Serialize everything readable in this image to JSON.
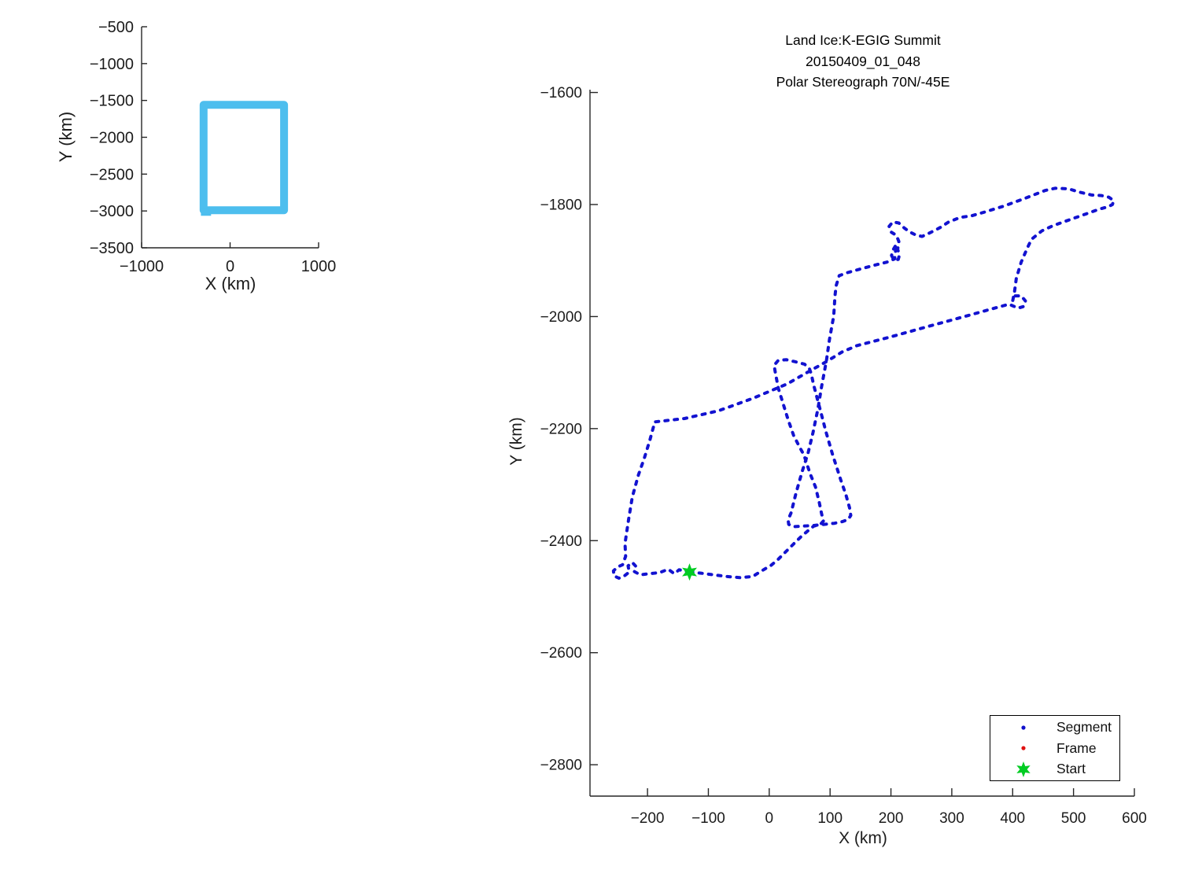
{
  "figure": {
    "background": "#ffffff",
    "text_color": "#1c1c1c"
  },
  "chart_data": [
    {
      "id": "overview",
      "type": "line",
      "title": "",
      "xlabel": "X (km)",
      "ylabel": "Y (km)",
      "xlim": [
        -1000,
        1000
      ],
      "ylim": [
        -3500,
        -500
      ],
      "xticks": [
        -1000,
        0,
        1000
      ],
      "yticks": [
        -500,
        -1000,
        -1500,
        -2000,
        -2500,
        -3000,
        -3500
      ],
      "grid": false,
      "legend_position": "none",
      "series": [
        {
          "name": "coverage-outline",
          "color": "#4dbeee",
          "linewidth": 10,
          "closed": true,
          "points": [
            [
              -300,
              -1560
            ],
            [
              610,
              -1560
            ],
            [
              610,
              -2990
            ],
            [
              -300,
              -2990
            ]
          ]
        },
        {
          "name": "coverage-outline-tail",
          "color": "#4dbeee",
          "linewidth": 10,
          "closed": false,
          "points": [
            [
              -330,
              -3012
            ],
            [
              -215,
              -3012
            ]
          ]
        }
      ]
    },
    {
      "id": "flight",
      "type": "line",
      "title_lines": [
        "Land Ice:K-EGIG Summit",
        "20150409_01_048",
        "Polar Stereograph 70N/-45E"
      ],
      "xlabel": "X (km)",
      "ylabel": "Y (km)",
      "xlim": [
        -294.5,
        600
      ],
      "ylim": [
        -2856,
        -1595
      ],
      "xticks": [
        -200,
        -100,
        0,
        100,
        200,
        300,
        400,
        500,
        600
      ],
      "yticks": [
        -1600,
        -1800,
        -2000,
        -2200,
        -2400,
        -2600,
        -2800
      ],
      "grid": false,
      "legend_position": "lower-right",
      "legend": [
        {
          "label": "Segment",
          "marker": "dot",
          "color": "#1111cc"
        },
        {
          "label": "Frame",
          "marker": "dot",
          "color": "#e01111"
        },
        {
          "label": "Start",
          "marker": "hexagram",
          "color": "#00cc22"
        }
      ],
      "start_marker": {
        "x": -131,
        "y": -2456,
        "color": "#00cc22"
      },
      "series": [
        {
          "name": "segment-track",
          "color": "#1212d0",
          "linewidth": 4,
          "dash": "4 8",
          "cap": "round",
          "closed": false,
          "points": [
            [
              -131,
              -2456
            ],
            [
              -148,
              -2452
            ],
            [
              -156,
              -2459
            ],
            [
              -166,
              -2451
            ],
            [
              -180,
              -2457
            ],
            [
              -198,
              -2459
            ],
            [
              -212,
              -2461
            ],
            [
              -222,
              -2455
            ],
            [
              -219,
              -2446
            ],
            [
              -225,
              -2439
            ],
            [
              -232,
              -2445
            ],
            [
              -230,
              -2456
            ],
            [
              -238,
              -2463
            ],
            [
              -247,
              -2467
            ],
            [
              -255,
              -2463
            ],
            [
              -256,
              -2454
            ],
            [
              -249,
              -2447
            ],
            [
              -241,
              -2443
            ],
            [
              -236,
              -2428
            ],
            [
              -237,
              -2405
            ],
            [
              -231,
              -2362
            ],
            [
              -225,
              -2322
            ],
            [
              -215,
              -2283
            ],
            [
              -205,
              -2252
            ],
            [
              -196,
              -2220
            ],
            [
              -188,
              -2188
            ],
            [
              -139,
              -2182
            ],
            [
              -83,
              -2168
            ],
            [
              -27,
              -2146
            ],
            [
              30,
              -2120
            ],
            [
              62,
              -2100
            ],
            [
              93,
              -2081
            ],
            [
              120,
              -2063
            ],
            [
              144,
              -2052
            ],
            [
              200,
              -2036
            ],
            [
              260,
              -2018
            ],
            [
              324,
              -1999
            ],
            [
              367,
              -1986
            ],
            [
              394,
              -1978
            ],
            [
              409,
              -1985
            ],
            [
              418,
              -1982
            ],
            [
              421,
              -1972
            ],
            [
              414,
              -1963
            ],
            [
              404,
              -1963
            ],
            [
              400,
              -1972
            ],
            [
              403,
              -1956
            ],
            [
              406,
              -1932
            ],
            [
              414,
              -1903
            ],
            [
              424,
              -1878
            ],
            [
              431,
              -1862
            ],
            [
              448,
              -1847
            ],
            [
              466,
              -1838
            ],
            [
              494,
              -1827
            ],
            [
              520,
              -1817
            ],
            [
              543,
              -1808
            ],
            [
              557,
              -1804
            ],
            [
              564,
              -1800
            ],
            [
              566,
              -1793
            ],
            [
              558,
              -1787
            ],
            [
              546,
              -1784
            ],
            [
              530,
              -1783
            ],
            [
              510,
              -1778
            ],
            [
              492,
              -1772
            ],
            [
              470,
              -1771
            ],
            [
              453,
              -1775
            ],
            [
              420,
              -1789
            ],
            [
              385,
              -1803
            ],
            [
              352,
              -1814
            ],
            [
              333,
              -1820
            ],
            [
              314,
              -1823
            ],
            [
              295,
              -1831
            ],
            [
              281,
              -1841
            ],
            [
              265,
              -1850
            ],
            [
              251,
              -1857
            ],
            [
              240,
              -1854
            ],
            [
              231,
              -1849
            ],
            [
              222,
              -1842
            ],
            [
              213,
              -1833
            ],
            [
              203,
              -1831
            ],
            [
              197,
              -1839
            ],
            [
              200,
              -1849
            ],
            [
              209,
              -1855
            ],
            [
              213,
              -1866
            ],
            [
              211,
              -1880
            ],
            [
              214,
              -1890
            ],
            [
              212,
              -1898
            ],
            [
              205,
              -1899
            ],
            [
              201,
              -1891
            ],
            [
              204,
              -1880
            ],
            [
              209,
              -1871
            ],
            [
              206,
              -1897
            ],
            [
              193,
              -1903
            ],
            [
              174,
              -1908
            ],
            [
              150,
              -1915
            ],
            [
              127,
              -1922
            ],
            [
              115,
              -1927
            ],
            [
              110,
              -1945
            ],
            [
              108,
              -1963
            ],
            [
              107,
              -1982
            ],
            [
              106,
              -1999
            ],
            [
              99,
              -2041
            ],
            [
              94,
              -2078
            ],
            [
              86,
              -2125
            ],
            [
              80,
              -2165
            ],
            [
              72,
              -2207
            ],
            [
              64,
              -2243
            ],
            [
              54,
              -2277
            ],
            [
              44,
              -2315
            ],
            [
              36,
              -2350
            ],
            [
              31,
              -2363
            ],
            [
              32,
              -2371
            ],
            [
              40,
              -2375
            ],
            [
              55,
              -2374
            ],
            [
              73,
              -2373
            ],
            [
              90,
              -2371
            ],
            [
              107,
              -2369
            ],
            [
              120,
              -2366
            ],
            [
              130,
              -2362
            ],
            [
              134,
              -2355
            ],
            [
              132,
              -2341
            ],
            [
              126,
              -2318
            ],
            [
              118,
              -2293
            ],
            [
              104,
              -2246
            ],
            [
              93,
              -2205
            ],
            [
              83,
              -2163
            ],
            [
              73,
              -2122
            ],
            [
              69,
              -2102
            ],
            [
              66,
              -2093
            ],
            [
              58,
              -2085
            ],
            [
              44,
              -2081
            ],
            [
              28,
              -2077
            ],
            [
              15,
              -2078
            ],
            [
              8,
              -2087
            ],
            [
              10,
              -2100
            ],
            [
              15,
              -2128
            ],
            [
              23,
              -2156
            ],
            [
              31,
              -2184
            ],
            [
              40,
              -2212
            ],
            [
              49,
              -2231
            ],
            [
              57,
              -2247
            ],
            [
              67,
              -2280
            ],
            [
              76,
              -2304
            ],
            [
              82,
              -2331
            ],
            [
              86,
              -2352
            ],
            [
              89,
              -2365
            ],
            [
              84,
              -2371
            ],
            [
              73,
              -2374
            ],
            [
              54,
              -2391
            ],
            [
              40,
              -2406
            ],
            [
              27,
              -2420
            ],
            [
              14,
              -2434
            ],
            [
              3,
              -2444
            ],
            [
              -14,
              -2455
            ],
            [
              -27,
              -2464
            ],
            [
              -48,
              -2466
            ],
            [
              -70,
              -2464
            ],
            [
              -92,
              -2461
            ],
            [
              -112,
              -2458
            ],
            [
              -131,
              -2456
            ]
          ]
        }
      ]
    }
  ]
}
